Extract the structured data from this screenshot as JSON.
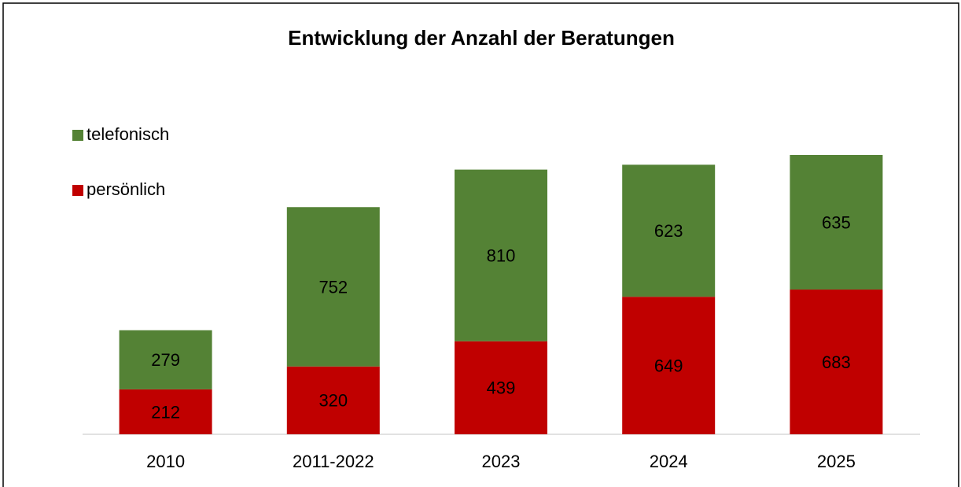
{
  "chart_data": {
    "type": "stacked_bar",
    "title": "Entwicklung der Anzahl der Beratungen",
    "categories": [
      "2010",
      "2011-2022",
      "2023",
      "2024",
      "2025"
    ],
    "series": [
      {
        "name": "persönlich",
        "color": "#c00000",
        "values": [
          212,
          320,
          439,
          649,
          683
        ]
      },
      {
        "name": "telefonisch",
        "color": "#548235",
        "values": [
          279,
          752,
          810,
          623,
          635
        ]
      }
    ]
  }
}
